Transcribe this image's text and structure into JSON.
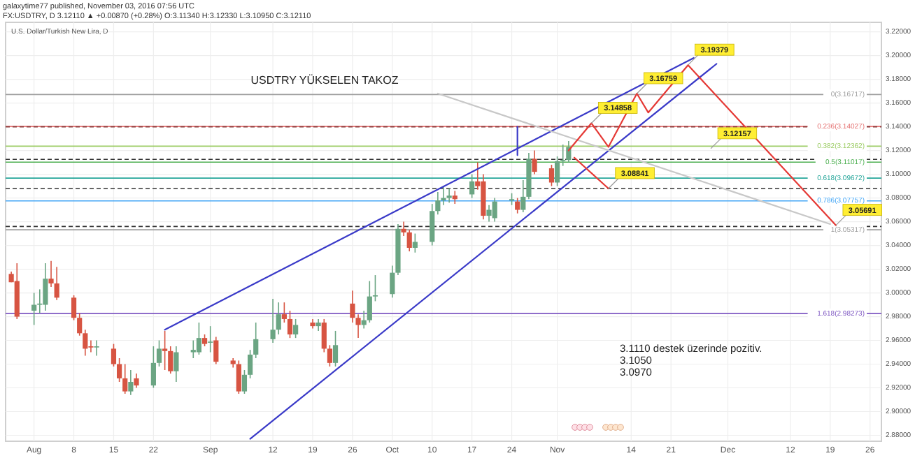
{
  "chart_data": {
    "type": "candlestick",
    "title": "USDTRY  YÜKSELEN TAKOZ",
    "subtitle": "U.S. Dollar/Turkish New Lira, D",
    "annotations": [
      "galaxytime77 published, November 03, 2016 07:56 UTC",
      "FX:USDTRY, D 3.12110 ▲ +0.00870 (+0.28%) O:3.11340 H:3.12330 L:3.10950 C:3.12110",
      "3.1110 destek üzerinde pozitiv.",
      "3.1050",
      "3.0970",
      {
        "text": "3.19379",
        "x": "2016-11-24",
        "y": 3.192
      },
      {
        "text": "3.16759",
        "x": "2016-11-15",
        "y": 3.168
      },
      {
        "text": "3.14858",
        "x": "2016-11-07",
        "y": 3.143
      },
      {
        "text": "3.12157",
        "x": "2016-11-28",
        "y": 3.1216
      },
      {
        "text": "3.08841",
        "x": "2016-11-10",
        "y": 3.088
      },
      {
        "text": "3.05691",
        "x": "2016-12-20",
        "y": 3.057
      }
    ],
    "xlim": [
      "2016-07-27",
      "2016-12-28"
    ],
    "xticks": [
      {
        "value": "2016-08-01",
        "label": "Aug"
      },
      {
        "value": "2016-08-08",
        "label": "8"
      },
      {
        "value": "2016-08-15",
        "label": "15"
      },
      {
        "value": "2016-08-22",
        "label": "22"
      },
      {
        "value": "2016-09-01",
        "label": "Sep"
      },
      {
        "value": "2016-09-12",
        "label": "12"
      },
      {
        "value": "2016-09-19",
        "label": "19"
      },
      {
        "value": "2016-09-26",
        "label": "26"
      },
      {
        "value": "2016-10-03",
        "label": "Oct"
      },
      {
        "value": "2016-10-10",
        "label": "10"
      },
      {
        "value": "2016-10-17",
        "label": "17"
      },
      {
        "value": "2016-10-24",
        "label": "24"
      },
      {
        "value": "2016-11-01",
        "label": "Nov"
      },
      {
        "value": "2016-11-14",
        "label": "14"
      },
      {
        "value": "2016-11-21",
        "label": "21"
      },
      {
        "value": "2016-12-01",
        "label": "Dec"
      },
      {
        "value": "2016-12-12",
        "label": "12"
      },
      {
        "value": "2016-12-19",
        "label": "19"
      },
      {
        "value": "2016-12-26",
        "label": "26"
      }
    ],
    "ylim": [
      2.875,
      3.228
    ],
    "yticks": [
      {
        "value": 2.88,
        "label": "2.88000"
      },
      {
        "value": 2.9,
        "label": "2.90000"
      },
      {
        "value": 2.92,
        "label": "2.92000"
      },
      {
        "value": 2.94,
        "label": "2.94000"
      },
      {
        "value": 2.96,
        "label": "2.96000"
      },
      {
        "value": 2.98,
        "label": "2.98000"
      },
      {
        "value": 3.0,
        "label": "3.00000"
      },
      {
        "value": 3.02,
        "label": "3.02000"
      },
      {
        "value": 3.04,
        "label": "3.04000"
      },
      {
        "value": 3.06,
        "label": "3.06000"
      },
      {
        "value": 3.08,
        "label": "3.08000"
      },
      {
        "value": 3.1,
        "label": "3.10000"
      },
      {
        "value": 3.12,
        "label": "3.12000"
      },
      {
        "value": 3.14,
        "label": "3.14000"
      },
      {
        "value": 3.16,
        "label": "3.16000"
      },
      {
        "value": 3.18,
        "label": "3.18000"
      },
      {
        "value": 3.2,
        "label": "3.20000"
      },
      {
        "value": 3.22,
        "label": "3.22000"
      }
    ],
    "grid": true,
    "ref_lines": [
      {
        "axis": "y",
        "value": 3.16717,
        "label": "0(3.16717)",
        "color": "#9e9e9e"
      },
      {
        "axis": "y",
        "value": 3.14027,
        "label": "0.236(3.14027)",
        "color": "#e57373"
      },
      {
        "axis": "y",
        "value": 3.12362,
        "label": "0.382(3.12362)",
        "color": "#9ccc65"
      },
      {
        "axis": "y",
        "value": 3.11017,
        "label": "0.5(3.11017)",
        "color": "#4caf50"
      },
      {
        "axis": "y",
        "value": 3.09672,
        "label": "0.618(3.09672)",
        "color": "#26a69a"
      },
      {
        "axis": "y",
        "value": 3.07757,
        "label": "0.786(3.07757)",
        "color": "#42a5f5"
      },
      {
        "axis": "y",
        "value": 3.05317,
        "label": "1(3.05317)",
        "color": "#9e9e9e"
      },
      {
        "axis": "y",
        "value": 2.98273,
        "label": "1.618(2.98273)",
        "color": "#7e57c2"
      },
      {
        "axis": "y",
        "value": 3.14,
        "color": "#8b3a3a",
        "line_style": "dashed"
      },
      {
        "axis": "y",
        "value": 3.1125,
        "color": "#333333",
        "line_style": "dashed"
      },
      {
        "axis": "y",
        "value": 3.088,
        "color": "#333333",
        "line_style": "dashed"
      },
      {
        "axis": "y",
        "value": 3.056,
        "color": "#333333",
        "line_style": "dashed"
      }
    ],
    "series": [
      {
        "x": [
          "2016-07-28",
          "2016-07-29",
          "2016-08-01",
          "2016-08-02",
          "2016-08-03",
          "2016-08-04",
          "2016-08-05",
          "2016-08-08",
          "2016-08-09",
          "2016-08-10",
          "2016-08-11",
          "2016-08-12",
          "2016-08-15",
          "2016-08-16",
          "2016-08-17",
          "2016-08-18",
          "2016-08-19",
          "2016-08-22",
          "2016-08-23",
          "2016-08-24",
          "2016-08-25",
          "2016-08-26",
          "2016-08-29",
          "2016-08-30",
          "2016-08-31",
          "2016-09-01",
          "2016-09-02",
          "2016-09-05",
          "2016-09-06",
          "2016-09-07",
          "2016-09-08",
          "2016-09-09",
          "2016-09-12",
          "2016-09-13",
          "2016-09-14",
          "2016-09-15",
          "2016-09-16",
          "2016-09-19",
          "2016-09-20",
          "2016-09-21",
          "2016-09-22",
          "2016-09-23",
          "2016-09-26",
          "2016-09-27",
          "2016-09-28",
          "2016-09-29",
          "2016-09-30",
          "2016-10-03",
          "2016-10-04",
          "2016-10-05",
          "2016-10-06",
          "2016-10-07",
          "2016-10-10",
          "2016-10-11",
          "2016-10-12",
          "2016-10-13",
          "2016-10-14",
          "2016-10-17",
          "2016-10-18",
          "2016-10-19",
          "2016-10-20",
          "2016-10-21",
          "2016-10-24",
          "2016-10-25",
          "2016-10-26",
          "2016-10-27",
          "2016-10-28",
          "2016-10-31",
          "2016-11-01",
          "2016-11-02",
          "2016-11-03"
        ],
        "ohlc": [
          [
            3.016,
            3.018,
            3.009,
            3.009
          ],
          [
            3.01,
            3.025,
            2.978,
            2.98
          ],
          [
            2.985,
            3.0,
            2.973,
            2.99
          ],
          [
            2.99,
            3.003,
            2.983,
            2.991
          ],
          [
            2.99,
            3.025,
            2.985,
            3.012
          ],
          [
            3.012,
            3.027,
            3.005,
            3.008
          ],
          [
            3.008,
            3.022,
            2.994,
            2.996
          ],
          [
            2.996,
            2.998,
            2.977,
            2.979
          ],
          [
            2.979,
            2.983,
            2.964,
            2.966
          ],
          [
            2.966,
            2.969,
            2.947,
            2.953
          ],
          [
            2.955,
            2.96,
            2.95,
            2.954
          ],
          [
            2.954,
            2.96,
            2.947,
            2.955
          ],
          [
            2.953,
            2.957,
            2.938,
            2.94
          ],
          [
            2.94,
            2.945,
            2.925,
            2.928
          ],
          [
            2.928,
            2.94,
            2.915,
            2.917
          ],
          [
            2.917,
            2.935,
            2.914,
            2.925
          ],
          [
            2.928,
            2.932,
            2.92,
            2.922
          ],
          [
            2.922,
            2.955,
            2.92,
            2.941
          ],
          [
            2.941,
            2.96,
            2.938,
            2.953
          ],
          [
            2.953,
            2.968,
            2.935,
            2.951
          ],
          [
            2.951,
            2.955,
            2.932,
            2.934
          ],
          [
            2.934,
            2.955,
            2.925,
            2.95
          ],
          [
            2.95,
            2.96,
            2.945,
            2.952
          ],
          [
            2.95,
            2.975,
            2.948,
            2.962
          ],
          [
            2.962,
            2.965,
            2.955,
            2.957
          ],
          [
            2.958,
            2.972,
            2.95,
            2.959
          ],
          [
            2.96,
            2.963,
            2.94,
            2.942
          ],
          [
            2.943,
            2.945,
            2.937,
            2.94
          ],
          [
            2.94,
            2.943,
            2.915,
            2.917
          ],
          [
            2.917,
            2.935,
            2.915,
            2.931
          ],
          [
            2.931,
            2.952,
            2.928,
            2.948
          ],
          [
            2.948,
            2.975,
            2.945,
            2.961
          ],
          [
            2.961,
            2.995,
            2.958,
            2.969
          ],
          [
            2.969,
            2.992,
            2.965,
            2.982
          ],
          [
            2.982,
            2.992,
            2.975,
            2.978
          ],
          [
            2.978,
            2.985,
            2.962,
            2.965
          ],
          [
            2.965,
            2.978,
            2.962,
            2.973
          ],
          [
            2.975,
            2.978,
            2.97,
            2.972
          ],
          [
            2.972,
            2.978,
            2.968,
            2.975
          ],
          [
            2.975,
            2.978,
            2.95,
            2.953
          ],
          [
            2.953,
            2.956,
            2.938,
            2.941
          ],
          [
            2.941,
            2.968,
            2.938,
            2.956
          ],
          [
            2.991,
            3.002,
            2.975,
            2.979
          ],
          [
            2.979,
            2.982,
            2.962,
            2.973
          ],
          [
            2.973,
            2.985,
            2.97,
            2.977
          ],
          [
            2.977,
            3.01,
            2.975,
            2.997
          ],
          [
            2.997,
            3.015,
            2.993,
            2.998
          ],
          [
            2.999,
            3.023,
            2.996,
            3.017
          ],
          [
            3.017,
            3.058,
            3.015,
            3.054
          ],
          [
            3.054,
            3.06,
            3.048,
            3.051
          ],
          [
            3.051,
            3.053,
            3.035,
            3.038
          ],
          [
            3.038,
            3.05,
            3.034,
            3.043
          ],
          [
            3.043,
            3.075,
            3.04,
            3.069
          ],
          [
            3.069,
            3.085,
            3.066,
            3.078
          ],
          [
            3.078,
            3.09,
            3.074,
            3.08
          ],
          [
            3.08,
            3.088,
            3.076,
            3.082
          ],
          [
            3.082,
            3.086,
            3.075,
            3.079
          ],
          [
            3.083,
            3.1,
            3.08,
            3.094
          ],
          [
            3.094,
            3.11,
            3.087,
            3.09
          ],
          [
            3.094,
            3.1,
            3.062,
            3.065
          ],
          [
            3.065,
            3.074,
            3.06,
            3.07
          ],
          [
            3.063,
            3.08,
            3.06,
            3.077
          ],
          [
            3.078,
            3.084,
            3.074,
            3.079
          ],
          [
            3.077,
            3.08,
            3.067,
            3.07
          ],
          [
            3.07,
            3.095,
            3.068,
            3.081
          ],
          [
            3.081,
            3.118,
            3.079,
            3.113
          ],
          [
            3.113,
            3.12,
            3.1,
            3.102
          ],
          [
            3.105,
            3.108,
            3.09,
            3.093
          ],
          [
            3.093,
            3.115,
            3.09,
            3.111
          ],
          [
            3.111,
            3.125,
            3.107,
            3.112
          ],
          [
            3.112,
            3.128,
            3.11,
            3.123
          ]
        ],
        "colors": [
          "#d75442",
          "#d75442",
          "#6ba583",
          "#6ba583",
          "#6ba583",
          "#d75442",
          "#d75442",
          "#d75442",
          "#d75442",
          "#d75442",
          "#d75442",
          "#6ba583",
          "#d75442",
          "#d75442",
          "#d75442",
          "#6ba583",
          "#d75442",
          "#6ba583",
          "#6ba583",
          "#d75442",
          "#d75442",
          "#6ba583",
          "#6ba583",
          "#6ba583",
          "#d75442",
          "#6ba583",
          "#d75442",
          "#d75442",
          "#d75442",
          "#6ba583",
          "#6ba583",
          "#6ba583",
          "#6ba583",
          "#6ba583",
          "#d75442",
          "#d75442",
          "#6ba583",
          "#d75442",
          "#6ba583",
          "#d75442",
          "#d75442",
          "#6ba583",
          "#d75442",
          "#d75442",
          "#6ba583",
          "#6ba583",
          "#6ba583",
          "#6ba583",
          "#6ba583",
          "#d75442",
          "#d75442",
          "#6ba583",
          "#6ba583",
          "#6ba583",
          "#6ba583",
          "#6ba583",
          "#d75442",
          "#6ba583",
          "#d75442",
          "#d75442",
          "#6ba583",
          "#6ba583",
          "#6ba583",
          "#d75442",
          "#6ba583",
          "#6ba583",
          "#d75442",
          "#d75442",
          "#6ba583",
          "#6ba583",
          "#6ba583"
        ]
      },
      {
        "type": "line",
        "x": [
          "2016-08-24",
          "2016-11-25"
        ],
        "values": [
          2.969,
          3.198
        ],
        "color": "#3a3ac8"
      },
      {
        "type": "line",
        "x": [
          "2016-09-08",
          "2016-11-29"
        ],
        "values": [
          2.877,
          3.193
        ],
        "color": "#3a3ac8"
      },
      {
        "type": "line",
        "x": [
          "2016-10-25",
          "2016-10-25"
        ],
        "values": [
          3.116,
          3.14
        ],
        "color": "#3a3ac8"
      },
      {
        "type": "line",
        "x": [
          "2016-10-11",
          "2016-12-19"
        ],
        "values": [
          3.168,
          3.058
        ],
        "color": "#c8c8c8"
      },
      {
        "type": "line",
        "x": [
          "2016-11-03",
          "2016-11-07",
          "2016-11-10",
          "2016-11-15",
          "2016-11-17",
          "2016-11-24",
          "2016-12-20"
        ],
        "values": [
          3.12,
          3.143,
          3.123,
          3.168,
          3.152,
          3.192,
          3.057
        ],
        "color": "#e53935"
      },
      {
        "type": "line",
        "x": [
          "2016-11-04",
          "2016-11-10"
        ],
        "values": [
          3.114,
          3.088
        ],
        "color": "#e53935"
      }
    ]
  }
}
